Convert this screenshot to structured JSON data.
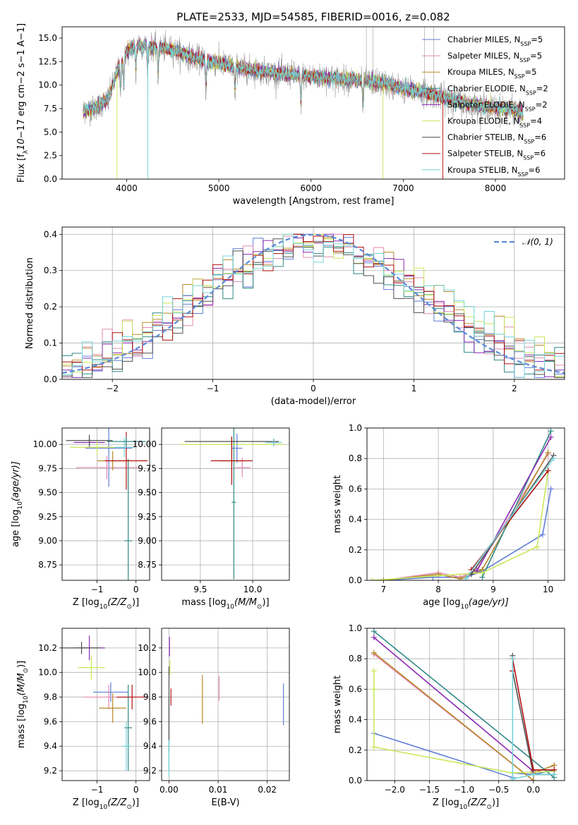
{
  "figure": {
    "title": "PLATE=2533, MJD=54585, FIBERID=0016, z=0.082"
  },
  "models": [
    {
      "label": "Chabrier MILES, N",
      "nssp": "=5",
      "color": "#5f7fd6"
    },
    {
      "label": "Salpeter MILES, N",
      "nssp": "=5",
      "color": "#e48ab4"
    },
    {
      "label": "Kroupa MILES, N",
      "nssp": "=5",
      "color": "#b78a2b"
    },
    {
      "label": "Chabrier ELODIE, N",
      "nssp": "=2",
      "color": "#2f8a86"
    },
    {
      "label": "Salpeter ELODIE, N",
      "nssp": "=2",
      "color": "#8a2bb4"
    },
    {
      "label": "Kroupa ELODIE, N",
      "nssp": "=4",
      "color": "#c8e85a"
    },
    {
      "label": "Chabrier STELIB, N",
      "nssp": "=6",
      "color": "#505050"
    },
    {
      "label": "Salpeter STELIB, N",
      "nssp": "=6",
      "color": "#b01010"
    },
    {
      "label": "Kroupa STELIB, N",
      "nssp": "=6",
      "color": "#74d4d8"
    }
  ],
  "nssp_subscript": "SSP",
  "chart_data": [
    {
      "id": "spectrum",
      "type": "line",
      "xlabel": "wavelength [Angstrom, rest frame]",
      "ylabel_parts": [
        "Flux [f",
        "λ",
        "10",
        "−17",
        " erg cm",
        "−2",
        " s",
        "−1",
        " A",
        "−1",
        "]"
      ],
      "xlim": [
        3300,
        8750
      ],
      "ylim": [
        0,
        16.2
      ],
      "xticks": [
        4000,
        5000,
        6000,
        7000,
        8000
      ],
      "yticks": [
        0.0,
        2.5,
        5.0,
        7.5,
        10.0,
        12.5,
        15.0
      ],
      "grid": false,
      "legend_position": "upper-right",
      "data_envelope": {
        "x": [
          3530,
          3650,
          3800,
          3900,
          4000,
          4100,
          4300,
          4500,
          4700,
          5000,
          5300,
          5600,
          6000,
          6400,
          6800,
          7000,
          7200,
          7400,
          7600,
          7800,
          8000,
          8200,
          8300
        ],
        "y": [
          7.3,
          7.5,
          8.5,
          11.5,
          13.5,
          14.3,
          14.0,
          13.8,
          13.0,
          12.3,
          11.7,
          11.3,
          10.9,
          10.6,
          10.2,
          9.6,
          9.3,
          8.8,
          8.2,
          7.8,
          7.6,
          7.3,
          7.0
        ]
      },
      "absorption_features": [
        3934,
        3969,
        4101,
        4227,
        4340,
        4861,
        5175,
        5890,
        6563
      ]
    },
    {
      "id": "residuals",
      "type": "histogram",
      "xlabel": "(data-model)/error",
      "ylabel": "Normed distribution",
      "xlim": [
        -2.5,
        2.5
      ],
      "ylim": [
        0,
        0.42
      ],
      "xticks": [
        -2,
        -1,
        0,
        1,
        2
      ],
      "yticks": [
        0.0,
        0.1,
        0.2,
        0.3,
        0.4
      ],
      "grid": true,
      "legend_position": "upper-right",
      "reference_curve": {
        "label": "𝒩(0, 1)",
        "mean": 0,
        "sigma": 1,
        "color": "#5b8bd8",
        "style": "dashed"
      },
      "bin_width": 0.1
    },
    {
      "id": "age-vs-Z",
      "type": "scatter",
      "xlabel_parts": [
        "Z [log",
        "10",
        "(Z/Z",
        "⊙",
        ")]"
      ],
      "ylabel_parts": [
        "age  [log",
        "10",
        "(age/yr)]"
      ],
      "xlim": [
        -1.9,
        0.35
      ],
      "ylim": [
        8.59,
        10.17
      ],
      "xticks": [
        -1,
        0
      ],
      "yticks": [
        8.75,
        9.0,
        9.25,
        9.5,
        9.75,
        10.0
      ],
      "grid": true,
      "points": [
        {
          "model": 0,
          "x": -0.7,
          "xerr": 0.6,
          "y": 9.96,
          "yerr": 0.4
        },
        {
          "model": 1,
          "x": -0.75,
          "xerr": 0.8,
          "y": 9.76,
          "yerr": 0.12
        },
        {
          "model": 2,
          "x": -0.6,
          "xerr": 0.4,
          "y": 9.83,
          "yerr": 0.1
        },
        {
          "model": 3,
          "x": -0.2,
          "xerr": 0.1,
          "y": 9.0,
          "yerr": 0.85
        },
        {
          "model": 4,
          "x": -1.2,
          "xerr": 0.4,
          "y": 10.02,
          "yerr": 0.05
        },
        {
          "model": 5,
          "x": -1.0,
          "xerr": 0.7,
          "y": 9.97,
          "yerr": 0.08
        },
        {
          "model": 6,
          "x": -1.2,
          "xerr": 0.6,
          "y": 10.04,
          "yerr": 0.06
        },
        {
          "model": 7,
          "x": -0.25,
          "xerr": 0.55,
          "y": 9.83,
          "yerr": 0.3
        },
        {
          "model": 8,
          "x": -0.3,
          "xerr": 0.25,
          "y": 9.97,
          "yerr": 0.1
        },
        {
          "model": 3,
          "x": -0.25,
          "xerr": 0.5,
          "y": 10.03,
          "yerr": 0.05
        }
      ]
    },
    {
      "id": "age-vs-mass",
      "type": "scatter",
      "xlabel_parts": [
        "mass [log",
        "10",
        "(M/M",
        "⊙",
        ")]"
      ],
      "ylabel": "",
      "xlim": [
        9.13,
        10.35
      ],
      "ylim": [
        8.59,
        10.17
      ],
      "xticks": [
        9.5,
        10.0
      ],
      "yticks": [
        8.75,
        9.0,
        9.25,
        9.5,
        9.75,
        10.0
      ],
      "grid": true,
      "points": [
        {
          "model": 0,
          "x": 9.85,
          "xerr": 0.05,
          "y": 9.96,
          "yerr": 0.15
        },
        {
          "model": 1,
          "x": 9.9,
          "xerr": 0.08,
          "y": 9.76,
          "yerr": 0.1
        },
        {
          "model": 2,
          "x": 9.8,
          "xerr": 0.12,
          "y": 9.83,
          "yerr": 0.1
        },
        {
          "model": 3,
          "x": 9.82,
          "xerr": 0.02,
          "y": 9.4,
          "yerr": 0.8
        },
        {
          "model": 4,
          "x": 10.2,
          "xerr": 0.05,
          "y": 10.02,
          "yerr": 0.04
        },
        {
          "model": 5,
          "x": 9.8,
          "xerr": 0.5,
          "y": 10.0,
          "yerr": 0.05
        },
        {
          "model": 6,
          "x": 9.8,
          "xerr": 0.45,
          "y": 10.03,
          "yerr": 0.05
        },
        {
          "model": 7,
          "x": 9.8,
          "xerr": 0.2,
          "y": 9.83,
          "yerr": 0.25
        },
        {
          "model": 8,
          "x": 10.2,
          "xerr": 0.08,
          "y": 10.02,
          "yerr": 0.04
        }
      ]
    },
    {
      "id": "mass-weight-vs-age",
      "type": "line",
      "xlabel_parts": [
        "age  [log",
        "10",
        "(age/yr)]"
      ],
      "ylabel": "mass weight",
      "xlim": [
        6.7,
        10.3
      ],
      "ylim": [
        0,
        1.0
      ],
      "xticks": [
        7,
        8,
        9,
        10
      ],
      "yticks": [
        0.0,
        0.2,
        0.4,
        0.6,
        0.8,
        1.0
      ],
      "grid": true,
      "series": [
        {
          "model": 0,
          "x": [
            7.0,
            7.9,
            8.5,
            8.8,
            9.9,
            10.05
          ],
          "y": [
            0.0,
            0.02,
            0.02,
            0.06,
            0.3,
            0.6
          ]
        },
        {
          "model": 1,
          "x": [
            7.0,
            8.0,
            8.4,
            8.7,
            10.0
          ],
          "y": [
            0.0,
            0.05,
            0.02,
            0.07,
            0.83
          ]
        },
        {
          "model": 2,
          "x": [
            7.0,
            8.0,
            8.4,
            8.8,
            10.0
          ],
          "y": [
            0.0,
            0.04,
            0.01,
            0.07,
            0.84
          ]
        },
        {
          "model": 3,
          "x": [
            8.8,
            10.05
          ],
          "y": [
            0.02,
            0.98
          ]
        },
        {
          "model": 4,
          "x": [
            8.7,
            10.05
          ],
          "y": [
            0.06,
            0.94
          ]
        },
        {
          "model": 5,
          "x": [
            6.8,
            8.8,
            9.8,
            10.0
          ],
          "y": [
            0.0,
            0.05,
            0.22,
            0.72
          ]
        },
        {
          "model": 6,
          "x": [
            8.6,
            10.1
          ],
          "y": [
            0.04,
            0.82
          ]
        },
        {
          "model": 7,
          "x": [
            8.6,
            10.0
          ],
          "y": [
            0.07,
            0.72
          ]
        },
        {
          "model": 8,
          "x": [
            8.5,
            10.1
          ],
          "y": [
            0.01,
            0.8
          ]
        }
      ]
    },
    {
      "id": "mass-vs-Z",
      "type": "scatter",
      "xlabel_parts": [
        "Z [log",
        "10",
        "(Z/Z",
        "⊙",
        ")]"
      ],
      "ylabel_parts": [
        "mass [log",
        "10",
        "(M/M",
        "⊙",
        ")]"
      ],
      "xlim": [
        -1.9,
        0.35
      ],
      "ylim": [
        9.12,
        10.36
      ],
      "xticks": [
        -1,
        0
      ],
      "yticks": [
        9.2,
        9.4,
        9.6,
        9.8,
        10.0,
        10.2
      ],
      "grid": true,
      "points": [
        {
          "model": 0,
          "x": -0.65,
          "xerr": 0.45,
          "y": 9.84,
          "yerr": 0.08
        },
        {
          "model": 1,
          "x": -0.7,
          "xerr": 0.65,
          "y": 9.8,
          "yerr": 0.1
        },
        {
          "model": 2,
          "x": -0.6,
          "xerr": 0.35,
          "y": 9.71,
          "yerr": 0.12
        },
        {
          "model": 3,
          "x": -0.2,
          "xerr": 0.1,
          "y": 9.55,
          "yerr": 0.35
        },
        {
          "model": 4,
          "x": -1.2,
          "xerr": 0.4,
          "y": 10.2,
          "yerr": 0.1
        },
        {
          "model": 5,
          "x": -1.15,
          "xerr": 0.35,
          "y": 10.04,
          "yerr": 0.1
        },
        {
          "model": 6,
          "x": -1.4,
          "xerr": 0.5,
          "y": 10.2,
          "yerr": 0.05
        },
        {
          "model": 7,
          "x": -0.1,
          "xerr": 0.4,
          "y": 9.8,
          "yerr": 0.1
        },
        {
          "model": 8,
          "x": -0.25,
          "xerr": 0.1,
          "y": 9.4,
          "yerr": 0.2
        }
      ]
    },
    {
      "id": "mass-vs-EBV",
      "type": "scatter",
      "xlabel": "E(B-V)",
      "ylabel": "",
      "xlim": [
        -0.0015,
        0.0245
      ],
      "ylim": [
        9.12,
        10.36
      ],
      "xticks": [
        0.0,
        0.01,
        0.02
      ],
      "yticks": [
        9.2,
        9.4,
        9.6,
        9.8,
        10.0,
        10.2
      ],
      "grid": true,
      "points": [
        {
          "model": 0,
          "x": 0.0233,
          "y": 9.74,
          "yerr": 0.17
        },
        {
          "model": 1,
          "x": 0.0102,
          "y": 9.87,
          "yerr": 0.1
        },
        {
          "model": 2,
          "x": 0.0068,
          "y": 9.78,
          "yerr": 0.2
        },
        {
          "model": 3,
          "x": 0.0,
          "y": 9.5,
          "yerr": 0.3
        },
        {
          "model": 4,
          "x": 0.0001,
          "y": 10.21,
          "yerr": 0.08
        },
        {
          "model": 5,
          "x": 0.0002,
          "y": 10.04,
          "yerr": 0.06
        },
        {
          "model": 6,
          "x": 0.0,
          "y": 9.7,
          "yerr": 0.35
        },
        {
          "model": 7,
          "x": 0.0004,
          "y": 9.8,
          "yerr": 0.07
        },
        {
          "model": 8,
          "x": 0.0,
          "y": 9.3,
          "yerr": 0.15
        }
      ]
    },
    {
      "id": "mass-weight-vs-Z",
      "type": "line",
      "xlabel_parts": [
        "Z [log",
        "10",
        "(Z/Z",
        "⊙",
        ")]"
      ],
      "ylabel": "mass weight",
      "xlim": [
        -2.4,
        0.45
      ],
      "ylim": [
        0,
        1.0
      ],
      "xticks": [
        -2.0,
        -1.5,
        -1.0,
        -0.5,
        0.0
      ],
      "yticks": [
        0.0,
        0.2,
        0.4,
        0.6,
        0.8,
        1.0
      ],
      "grid": true,
      "series": [
        {
          "model": 0,
          "x": [
            -2.3,
            -0.3,
            -0.3,
            0.0,
            0.3
          ],
          "y": [
            0.31,
            0.02,
            0.05,
            0.04,
            0.07
          ]
        },
        {
          "model": 1,
          "x": [
            -2.3,
            0.0,
            0.0,
            0.3
          ],
          "y": [
            0.83,
            0.0,
            0.05,
            0.1
          ]
        },
        {
          "model": 2,
          "x": [
            -2.3,
            0.0,
            0.0,
            0.3
          ],
          "y": [
            0.84,
            0.0,
            0.05,
            0.1
          ]
        },
        {
          "model": 3,
          "x": [
            -2.3,
            0.3
          ],
          "y": [
            0.98,
            0.02
          ]
        },
        {
          "model": 4,
          "x": [
            -2.3,
            0.0
          ],
          "y": [
            0.94,
            0.06
          ]
        },
        {
          "model": 5,
          "x": [
            -2.3,
            -2.3,
            -2.3,
            -0.3,
            0.3
          ],
          "y": [
            0.72,
            0.6,
            0.22,
            0.05,
            0.06
          ]
        },
        {
          "model": 6,
          "x": [
            -0.3,
            -0.3,
            0.0,
            0.3
          ],
          "y": [
            0.82,
            0.72,
            0.04,
            0.04
          ]
        },
        {
          "model": 7,
          "x": [
            -0.3,
            -0.3,
            0.0,
            0.3
          ],
          "y": [
            0.72,
            0.8,
            0.07,
            0.07
          ]
        },
        {
          "model": 8,
          "x": [
            -0.3,
            -0.3,
            0.0,
            0.3
          ],
          "y": [
            0.8,
            0.01,
            0.04,
            0.04
          ]
        }
      ]
    }
  ]
}
